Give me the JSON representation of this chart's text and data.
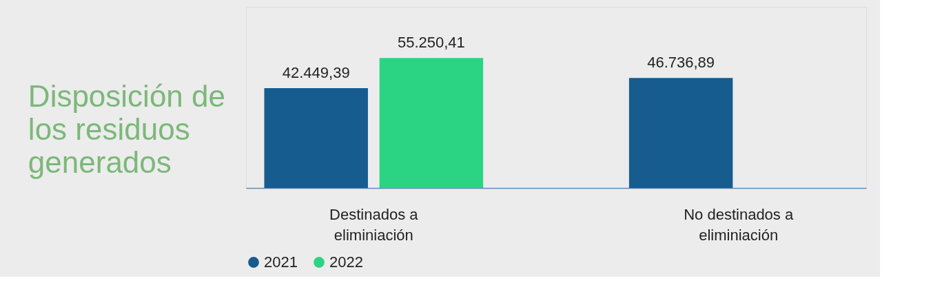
{
  "chart_data": {
    "type": "bar",
    "title": "Disposición de los residuos generados",
    "categories": [
      "Destinados a eliminiación",
      "No destinados a eliminiación"
    ],
    "series": [
      {
        "name": "2021",
        "color": "#165c8f",
        "values": [
          42449.39,
          46736.89
        ],
        "value_labels": [
          "42.449,39",
          "46.736,89"
        ]
      },
      {
        "name": "2022",
        "color": "#2bd483",
        "values": [
          55250.41,
          null
        ],
        "value_labels": [
          "55.250,41",
          null
        ]
      }
    ],
    "ylim": [
      0,
      77000
    ],
    "tick_labels": "x",
    "legend": "bottom",
    "grid": false
  }
}
